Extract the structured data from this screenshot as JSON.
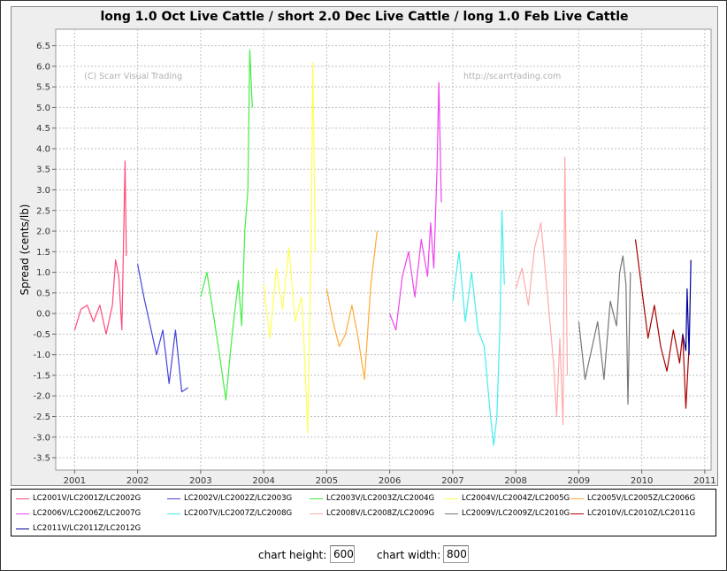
{
  "controls": {
    "height_label": "chart height:",
    "height_value": "600",
    "width_label": "chart width:",
    "width_value": "800"
  },
  "chart_data": {
    "type": "line",
    "title": "long 1.0 Oct Live Cattle / short 2.0 Dec Live Cattle / long 1.0 Feb Live Cattle",
    "ylabel": "Spread (cents/lb)",
    "xlabel": "",
    "ylim": [
      -3.8,
      6.9
    ],
    "xlim": [
      2000.7,
      2011.1
    ],
    "yticks": [
      "6.5",
      "6.0",
      "5.5",
      "5.0",
      "4.5",
      "4.0",
      "3.5",
      "3.0",
      "2.5",
      "2.0",
      "1.5",
      "1.0",
      "0.5",
      "0.0",
      "-0.5",
      "-1.0",
      "-1.5",
      "-2.0",
      "-2.5",
      "-3.0",
      "-3.5"
    ],
    "xticks": [
      "2001",
      "2002",
      "2003",
      "2004",
      "2005",
      "2006",
      "2007",
      "2008",
      "2009",
      "2010",
      "2011"
    ],
    "grid": true,
    "legend_position": "bottom",
    "watermarks": [
      "(C) Scarr Visual Trading",
      "http://scarrtrading.com"
    ],
    "series": [
      {
        "name": "LC2001V/LC2001Z/LC2002G",
        "color": "#ff4b7b",
        "x": [
          2001.0,
          2001.1,
          2001.2,
          2001.3,
          2001.4,
          2001.5,
          2001.6,
          2001.65,
          2001.7,
          2001.75,
          2001.8,
          2001.82
        ],
        "y": [
          -0.4,
          0.1,
          0.2,
          -0.2,
          0.2,
          -0.5,
          0.2,
          1.3,
          0.9,
          -0.4,
          3.7,
          1.4
        ]
      },
      {
        "name": "LC2002V/LC2002Z/LC2003G",
        "color": "#4444dd",
        "x": [
          2002.0,
          2002.1,
          2002.2,
          2002.3,
          2002.4,
          2002.5,
          2002.6,
          2002.7,
          2002.8
        ],
        "y": [
          1.2,
          0.4,
          -0.3,
          -1.0,
          -0.4,
          -1.7,
          -0.4,
          -1.9,
          -1.8
        ]
      },
      {
        "name": "LC2003V/LC2003Z/LC2004G",
        "color": "#44ee44",
        "x": [
          2003.0,
          2003.1,
          2003.2,
          2003.3,
          2003.4,
          2003.5,
          2003.6,
          2003.65,
          2003.7,
          2003.75,
          2003.78,
          2003.82
        ],
        "y": [
          0.4,
          1.0,
          0.0,
          -1.0,
          -2.1,
          -0.5,
          0.8,
          -0.3,
          2.0,
          3.0,
          6.4,
          5.0
        ]
      },
      {
        "name": "LC2004V/LC2004Z/LC2005G",
        "color": "#ffff55",
        "x": [
          2004.0,
          2004.1,
          2004.2,
          2004.3,
          2004.4,
          2004.5,
          2004.6,
          2004.65,
          2004.7,
          2004.75,
          2004.78,
          2004.82
        ],
        "y": [
          0.7,
          -0.6,
          1.1,
          0.1,
          1.6,
          -0.2,
          0.4,
          -1.0,
          -2.9,
          1.5,
          6.1,
          1.5
        ]
      },
      {
        "name": "LC2005V/LC2005Z/LC2006G",
        "color": "#ffaa33",
        "x": [
          2005.0,
          2005.1,
          2005.2,
          2005.3,
          2005.4,
          2005.5,
          2005.6,
          2005.7,
          2005.8
        ],
        "y": [
          0.6,
          -0.2,
          -0.8,
          -0.5,
          0.2,
          -0.6,
          -1.6,
          0.7,
          2.0
        ]
      },
      {
        "name": "LC2006V/LC2006Z/LC2007G",
        "color": "#ee44ee",
        "x": [
          2006.0,
          2006.1,
          2006.2,
          2006.3,
          2006.4,
          2006.5,
          2006.6,
          2006.65,
          2006.7,
          2006.75,
          2006.78,
          2006.82
        ],
        "y": [
          0.0,
          -0.4,
          0.9,
          1.5,
          0.4,
          1.8,
          0.9,
          2.2,
          1.1,
          3.5,
          5.6,
          2.7
        ]
      },
      {
        "name": "LC2007V/LC2007Z/LC2008G",
        "color": "#44eeee",
        "x": [
          2007.0,
          2007.1,
          2007.2,
          2007.3,
          2007.4,
          2007.5,
          2007.6,
          2007.65,
          2007.7,
          2007.75,
          2007.78,
          2007.82
        ],
        "y": [
          0.3,
          1.5,
          -0.2,
          1.0,
          -0.4,
          -0.8,
          -2.5,
          -3.2,
          -2.5,
          -0.3,
          2.5,
          0.7
        ]
      },
      {
        "name": "LC2008V/LC2008Z/LC2009G",
        "color": "#ffaaaa",
        "x": [
          2008.0,
          2008.1,
          2008.2,
          2008.3,
          2008.4,
          2008.5,
          2008.6,
          2008.65,
          2008.7,
          2008.75,
          2008.78,
          2008.82
        ],
        "y": [
          0.6,
          1.1,
          0.2,
          1.6,
          2.2,
          0.5,
          -1.2,
          -2.5,
          -0.6,
          -2.7,
          3.8,
          -1.5
        ]
      },
      {
        "name": "LC2009V/LC2009Z/LC2010G",
        "color": "#777777",
        "x": [
          2009.0,
          2009.1,
          2009.2,
          2009.3,
          2009.4,
          2009.5,
          2009.6,
          2009.65,
          2009.7,
          2009.75,
          2009.78,
          2009.82
        ],
        "y": [
          -0.2,
          -1.6,
          -0.9,
          -0.2,
          -1.6,
          0.3,
          -0.3,
          1.0,
          1.4,
          0.7,
          -2.2,
          1.0
        ]
      },
      {
        "name": "LC2010V/LC2010Z/LC2011G",
        "color": "#aa0000",
        "x": [
          2009.9,
          2010.0,
          2010.1,
          2010.2,
          2010.3,
          2010.4,
          2010.5,
          2010.6,
          2010.65,
          2010.7,
          2010.75
        ],
        "y": [
          1.8,
          0.6,
          -0.6,
          0.2,
          -0.8,
          -1.4,
          -0.4,
          -1.2,
          -0.5,
          -2.3,
          -0.8
        ]
      },
      {
        "name": "LC2011V/LC2011Z/LC2012G",
        "color": "#000099",
        "x": [
          2010.65,
          2010.7,
          2010.72,
          2010.75,
          2010.78
        ],
        "y": [
          -0.5,
          -0.9,
          0.6,
          -1.0,
          1.3
        ]
      }
    ]
  }
}
